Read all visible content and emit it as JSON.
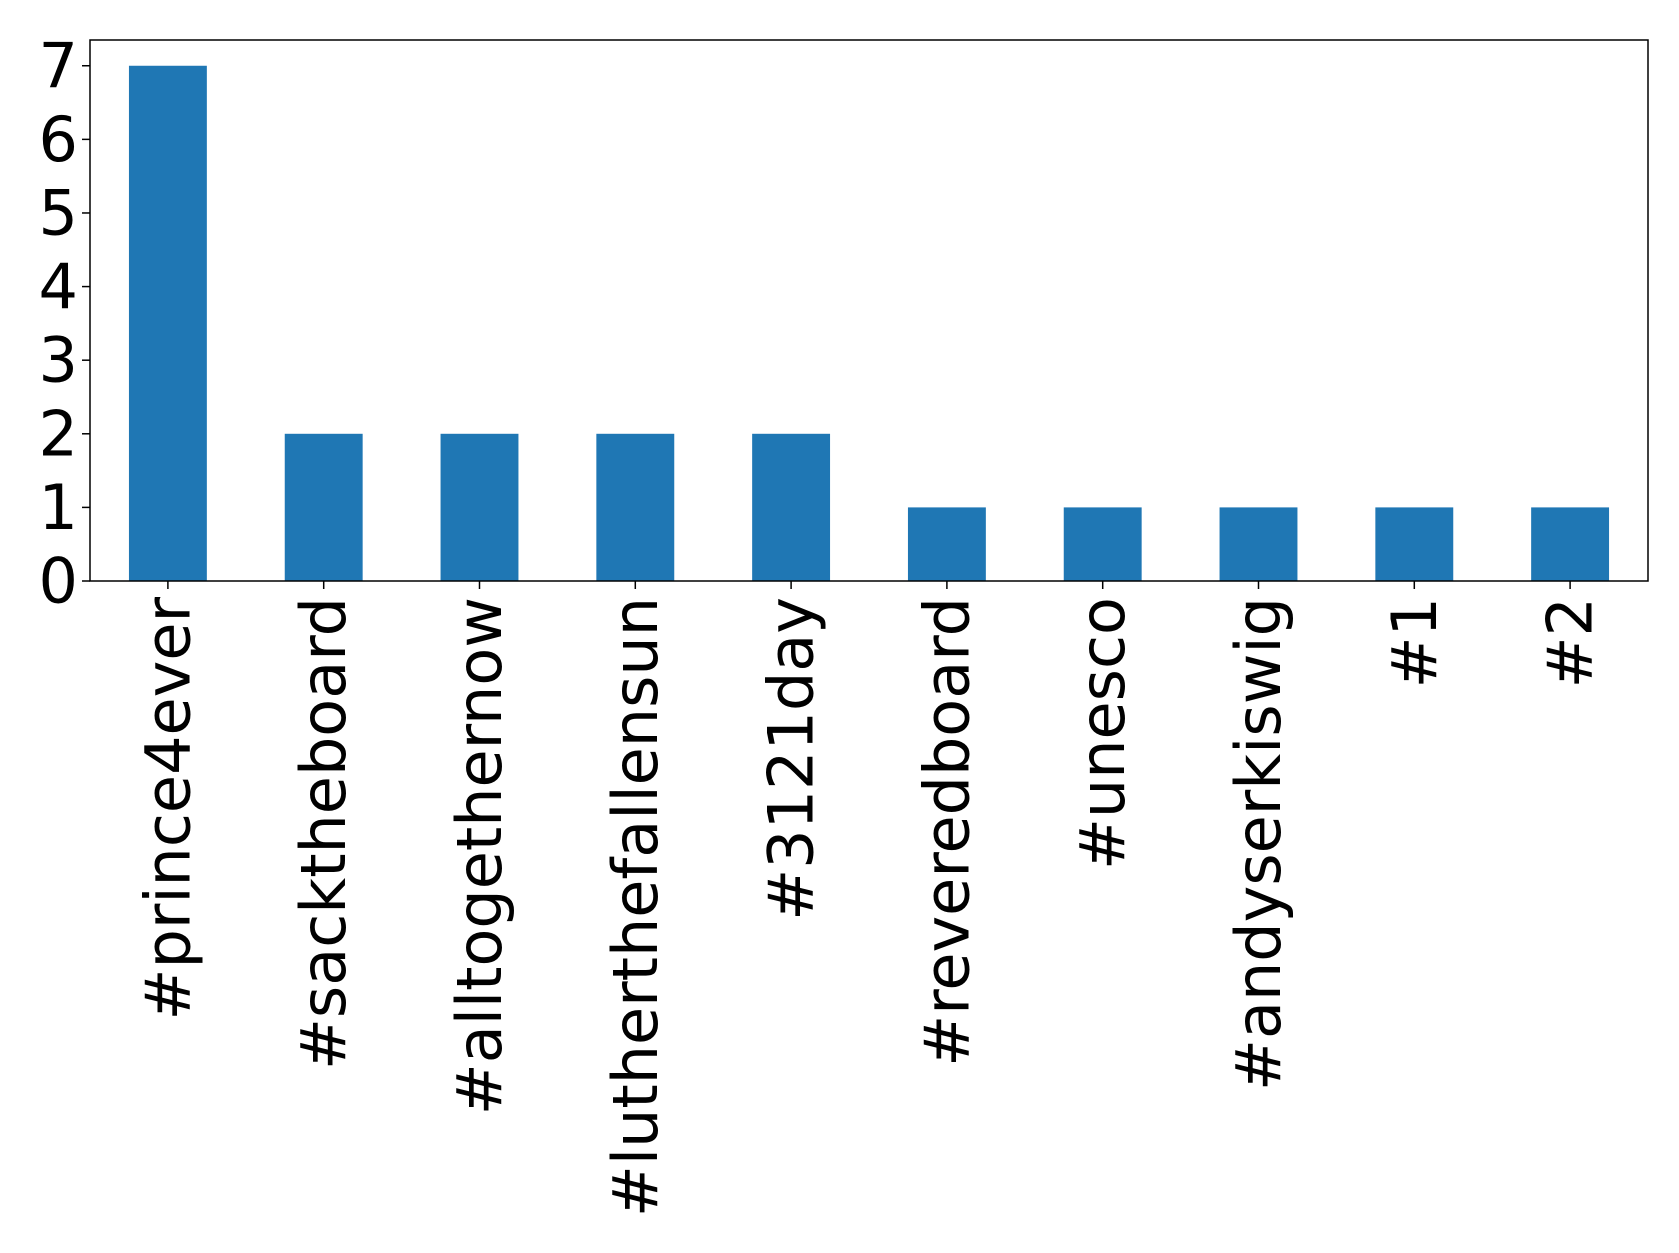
{
  "chart_data": {
    "type": "bar",
    "categories": [
      "#prince4ever",
      "#sacktheboard",
      "#alltogethernow",
      "#lutherthefallensun",
      "#3121day",
      "#reveredboard",
      "#unesco",
      "#andyserkiswig",
      "#1",
      "#2"
    ],
    "values": [
      7,
      2,
      2,
      2,
      2,
      1,
      1,
      1,
      1,
      1
    ],
    "color": "#1f77b4",
    "ylim": [
      0,
      7.35
    ],
    "yticks": [
      0,
      1,
      2,
      3,
      4,
      5,
      6,
      7
    ],
    "grid": false
  }
}
